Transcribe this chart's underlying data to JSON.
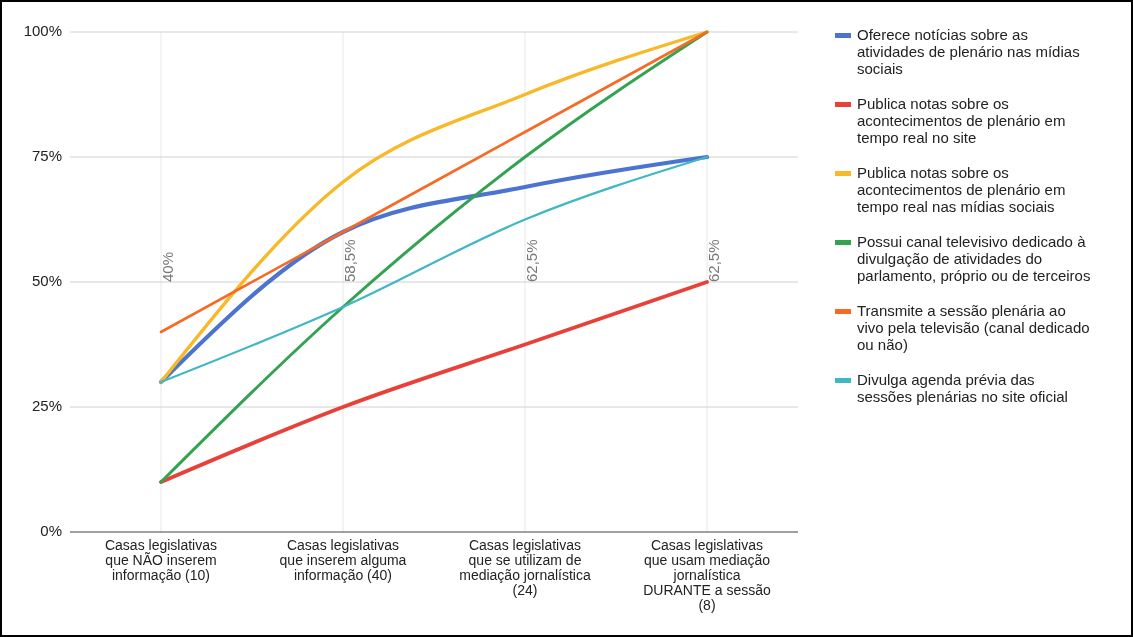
{
  "chart_data": {
    "type": "line",
    "categories": [
      "Casas legislativas que NÃO inserem informação (10)",
      "Casas legislativas que inserem alguma informação (40)",
      "Casas legislativas que se utilizam de mediação jornalística (24)",
      "Casas legislativas que usam mediação jornalística DURANTE a sessão (8)"
    ],
    "series": [
      {
        "name": "Oferece notícias sobre as atividades de plenário nas mídias sociais",
        "color": "#4a74d0",
        "values": [
          30,
          60,
          69,
          75
        ]
      },
      {
        "name": "Publica notas sobre os acontecimentos de plenário em tempo real no site",
        "color": "#e8413a",
        "values": [
          10,
          25,
          37.5,
          50
        ]
      },
      {
        "name": "Publica notas sobre os acontecimentos de plenário em tempo real nas mídias sociais",
        "color": "#f7b928",
        "values": [
          30,
          70,
          87.5,
          100
        ]
      },
      {
        "name": "Possui canal televisivo dedicado à divulgação de atividades do parlamento, próprio ou de terceiros",
        "color": "#33a352",
        "values": [
          10,
          45,
          75,
          100
        ]
      },
      {
        "name": "Transmite a sessão plenária ao vivo pela televisão (canal dedicado ou não)",
        "color": "#f66b24",
        "values": [
          40,
          60,
          80,
          100
        ]
      },
      {
        "name": "Divulga agenda prévia das sessões plenárias no site oficial",
        "color": "#3fb8c4",
        "values": [
          30,
          45,
          62.5,
          75
        ]
      }
    ],
    "ylim": [
      0,
      100
    ],
    "yticks": [
      {
        "value": 0,
        "label": "0%"
      },
      {
        "value": 25,
        "label": "25%"
      },
      {
        "value": 50,
        "label": "50%"
      },
      {
        "value": 75,
        "label": "75%"
      },
      {
        "value": 100,
        "label": "100%"
      }
    ],
    "grid": true,
    "legend": "right",
    "marker": "none",
    "line_style": "solid",
    "annotations": [
      "40%",
      "58,5%",
      "62,5%",
      "62,5%"
    ]
  }
}
